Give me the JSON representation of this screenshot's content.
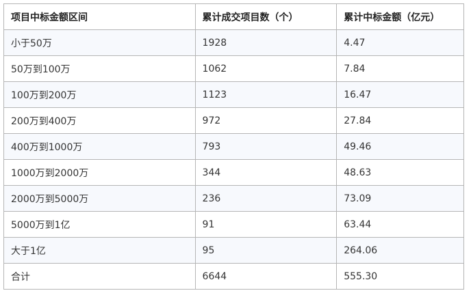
{
  "table": {
    "headers": [
      "项目中标金额区间",
      "累计成交项目数（个）",
      "累计中标金额（亿元）"
    ],
    "rows": [
      [
        "小于50万",
        "1928",
        "4.47"
      ],
      [
        "50万到100万",
        "1062",
        "7.84"
      ],
      [
        "100万到200万",
        "1123",
        "16.47"
      ],
      [
        "200万到400万",
        "972",
        "27.84"
      ],
      [
        "400万到1000万",
        "793",
        "49.46"
      ],
      [
        "1000万到2000万",
        "344",
        "48.63"
      ],
      [
        "2000万到5000万",
        "236",
        "73.09"
      ],
      [
        "5000万到1亿",
        "91",
        "63.44"
      ],
      [
        "大于1亿",
        "95",
        "264.06"
      ],
      [
        "合计",
        "6644",
        "555.30"
      ]
    ]
  }
}
